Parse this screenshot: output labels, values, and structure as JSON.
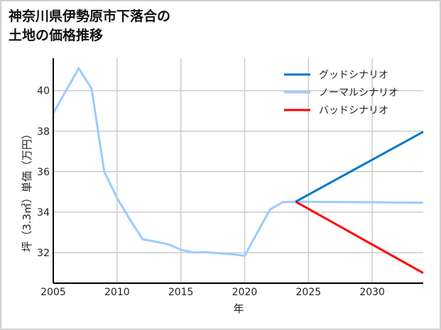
{
  "chart_data": {
    "type": "line",
    "title": "神奈川県伊勢原市下落合の\n土地の価格推移",
    "xlabel": "年",
    "ylabel": "坪（3.3㎡）単価（万円）",
    "xlim": [
      2005,
      2034
    ],
    "ylim": [
      30.5,
      41.6
    ],
    "xticks": [
      2005,
      2010,
      2015,
      2020,
      2025,
      2030
    ],
    "yticks": [
      32,
      34,
      36,
      38,
      40
    ],
    "grid": true,
    "legend_position": "top-right",
    "series": [
      {
        "name": "グッドシナリオ",
        "color": "#0077cc",
        "x": [
          2024,
          2034
        ],
        "y": [
          34.52,
          37.97
        ]
      },
      {
        "name": "ノーマルシナリオ",
        "color": "#99ccff",
        "x": [
          2005,
          2006,
          2007,
          2008,
          2009,
          2010,
          2011,
          2012,
          2013,
          2014,
          2015,
          2016,
          2017,
          2018,
          2019,
          2020,
          2021,
          2022,
          2023,
          2024,
          2034
        ],
        "y": [
          38.88,
          40.0,
          41.1,
          40.1,
          36.0,
          34.7,
          33.65,
          32.67,
          32.55,
          32.42,
          32.15,
          32.01,
          32.03,
          31.97,
          31.93,
          31.85,
          33.0,
          34.14,
          34.5,
          34.52,
          34.47
        ]
      },
      {
        "name": "バッドシナリオ",
        "color": "#ff0000",
        "x": [
          2024,
          2034
        ],
        "y": [
          34.52,
          31.0
        ]
      }
    ]
  }
}
